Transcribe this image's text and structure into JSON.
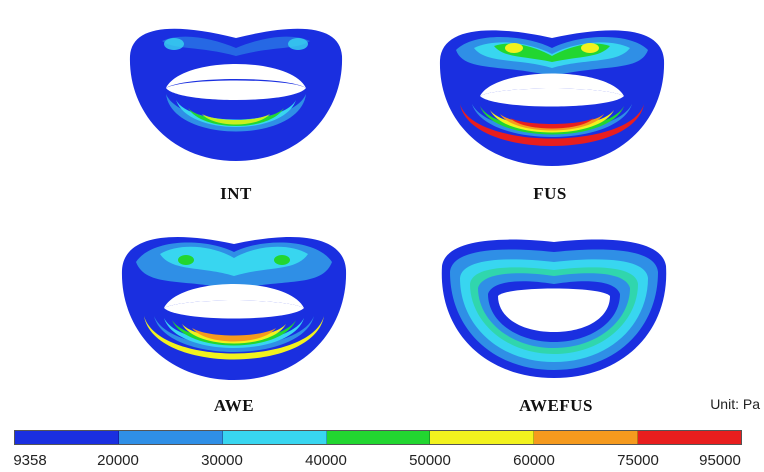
{
  "panels": [
    {
      "label": "INT"
    },
    {
      "label": "FUS"
    },
    {
      "label": "AWE"
    },
    {
      "label": "AWEFUS"
    }
  ],
  "unit": "Unit: Pa",
  "colorbar": {
    "ticks": [
      "9358",
      "20000",
      "30000",
      "40000",
      "50000",
      "60000",
      "75000",
      "95000"
    ],
    "colors": [
      "#1a2fe0",
      "#2f8fe6",
      "#38d6f0",
      "#22d630",
      "#f2f21e",
      "#f59a1e",
      "#e81e1e"
    ]
  }
}
